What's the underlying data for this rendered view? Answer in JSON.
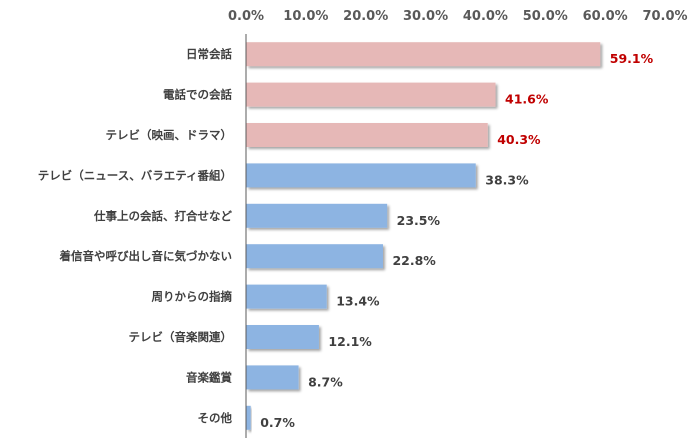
{
  "chart_data": {
    "type": "bar",
    "orientation": "horizontal",
    "categories": [
      "日常会話",
      "電話での会話",
      "テレビ（映画、ドラマ）",
      "テレビ（ニュース、バラエティ番組）",
      "仕事上の会話、打合せなど",
      "着信音や呼び出し音に気づかない",
      "周りからの指摘",
      "テレビ（音楽関連）",
      "音楽鑑賞",
      "その他"
    ],
    "values": [
      59.1,
      41.6,
      40.3,
      38.3,
      23.5,
      22.8,
      13.4,
      12.1,
      8.7,
      0.7
    ],
    "value_labels": [
      "59.1%",
      "41.6%",
      "40.3%",
      "38.3%",
      "23.5%",
      "22.8%",
      "13.4%",
      "12.1%",
      "8.7%",
      "0.7%"
    ],
    "highlighted": [
      true,
      true,
      true,
      false,
      false,
      false,
      false,
      false,
      false,
      false
    ],
    "xlim": [
      0,
      70
    ],
    "xticks": [
      "0.0%",
      "10.0%",
      "20.0%",
      "30.0%",
      "40.0%",
      "50.0%",
      "60.0%",
      "70.0%"
    ],
    "axis_position": "top",
    "grid": false,
    "colors": {
      "highlight_bar": "#e6b8b7",
      "normal_bar": "#8db4e2",
      "highlight_label": "#c00000",
      "normal_label": "#404040",
      "axis": "#595959"
    }
  }
}
